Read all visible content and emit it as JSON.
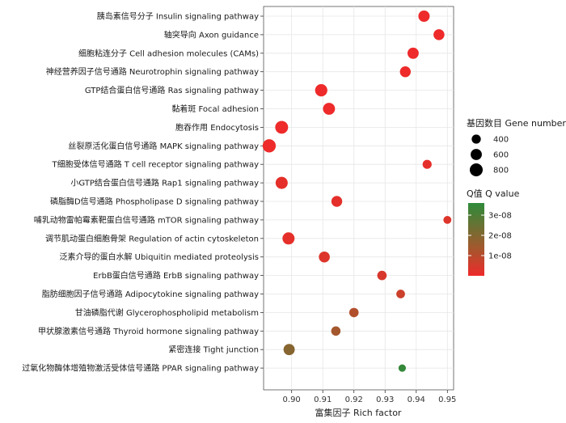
{
  "chart_data": {
    "type": "scatter",
    "title": "",
    "xlabel": "富集因子 Rich factor",
    "ylabel": "",
    "xlim": [
      0.891,
      0.952
    ],
    "x_ticks": [
      "0.90",
      "0.91",
      "0.92",
      "0.93",
      "0.94",
      "0.95"
    ],
    "x_tick_values": [
      0.9,
      0.91,
      0.92,
      0.93,
      0.94,
      0.95
    ],
    "grid": true,
    "legend_position": "right",
    "categories": [
      "胰岛素信号分子 Insulin signaling pathway",
      "轴突导向 Axon guidance",
      "细胞粘连分子 Cell adhesion molecules (CAMs)",
      "神经营养因子信号通路 Neurotrophin signaling pathway",
      "GTP结合蛋白信号通路 Ras signaling pathway",
      "黏着斑 Focal adhesion",
      "胞吞作用 Endocytosis",
      "丝裂原活化蛋白信号通路 MAPK signaling pathway",
      "T细胞受体信号通路 T cell receptor signaling pathway",
      "小GTP结合蛋白信号通路 Rap1 signaling pathway",
      "磷脂酶D信号通路 Phospholipase D signaling pathway",
      "哺乳动物雷帕霉素靶蛋白信号通路 mTOR signaling pathway",
      "调节肌动蛋白细胞骨架 Regulation of actin cytoskeleton",
      "泛素介导的蛋白水解 Ubiquitin mediated proteolysis",
      "ErbB蛋白信号通路 ErbB signaling pathway",
      "脂肪细胞因子信号通路 Adipocytokine signaling pathway",
      "甘油磷脂代谢 Glycerophospholipid metabolism",
      "甲状腺激素信号通路 Thyroid hormone signaling pathway",
      "紧密连接 Tight junction",
      "过氧化物酶体增殖物激活受体信号通路 PPAR signaling pathway"
    ],
    "points": [
      {
        "rich_factor": 0.9425,
        "gene_number": 610,
        "q_value": 1e-10
      },
      {
        "rich_factor": 0.9473,
        "gene_number": 570,
        "q_value": 1e-10
      },
      {
        "rich_factor": 0.939,
        "gene_number": 600,
        "q_value": 1e-10
      },
      {
        "rich_factor": 0.9365,
        "gene_number": 560,
        "q_value": 1e-10
      },
      {
        "rich_factor": 0.9095,
        "gene_number": 720,
        "q_value": 1e-10
      },
      {
        "rich_factor": 0.912,
        "gene_number": 690,
        "q_value": 1e-10
      },
      {
        "rich_factor": 0.8968,
        "gene_number": 790,
        "q_value": 1e-10
      },
      {
        "rich_factor": 0.8928,
        "gene_number": 830,
        "q_value": 1e-10
      },
      {
        "rich_factor": 0.9435,
        "gene_number": 390,
        "q_value": 2e-09
      },
      {
        "rich_factor": 0.8968,
        "gene_number": 700,
        "q_value": 2e-09
      },
      {
        "rich_factor": 0.9145,
        "gene_number": 560,
        "q_value": 2e-09
      },
      {
        "rich_factor": 0.95,
        "gene_number": 300,
        "q_value": 4e-09
      },
      {
        "rich_factor": 0.899,
        "gene_number": 700,
        "q_value": 2e-09
      },
      {
        "rich_factor": 0.9105,
        "gene_number": 570,
        "q_value": 4e-09
      },
      {
        "rich_factor": 0.929,
        "gene_number": 420,
        "q_value": 5e-09
      },
      {
        "rich_factor": 0.935,
        "gene_number": 360,
        "q_value": 8e-09
      },
      {
        "rich_factor": 0.92,
        "gene_number": 420,
        "q_value": 1.4e-08
      },
      {
        "rich_factor": 0.9142,
        "gene_number": 420,
        "q_value": 1.7e-08
      },
      {
        "rich_factor": 0.8992,
        "gene_number": 600,
        "q_value": 2.2e-08
      },
      {
        "rich_factor": 0.9355,
        "gene_number": 260,
        "q_value": 3.5e-08
      }
    ],
    "size_legend": {
      "title": "基因数目 Gene number",
      "entries": [
        "400",
        "600",
        "800"
      ],
      "values": [
        400,
        600,
        800
      ]
    },
    "color_legend": {
      "title": "Q值 Q value",
      "ticks": [
        "3e-08",
        "2e-08",
        "1e-08"
      ],
      "tick_values": [
        3e-08,
        2e-08,
        1e-08
      ],
      "range": [
        0,
        3.6e-08
      ],
      "colors": [
        "#ee2a2a",
        "#2e8b3a"
      ]
    }
  }
}
